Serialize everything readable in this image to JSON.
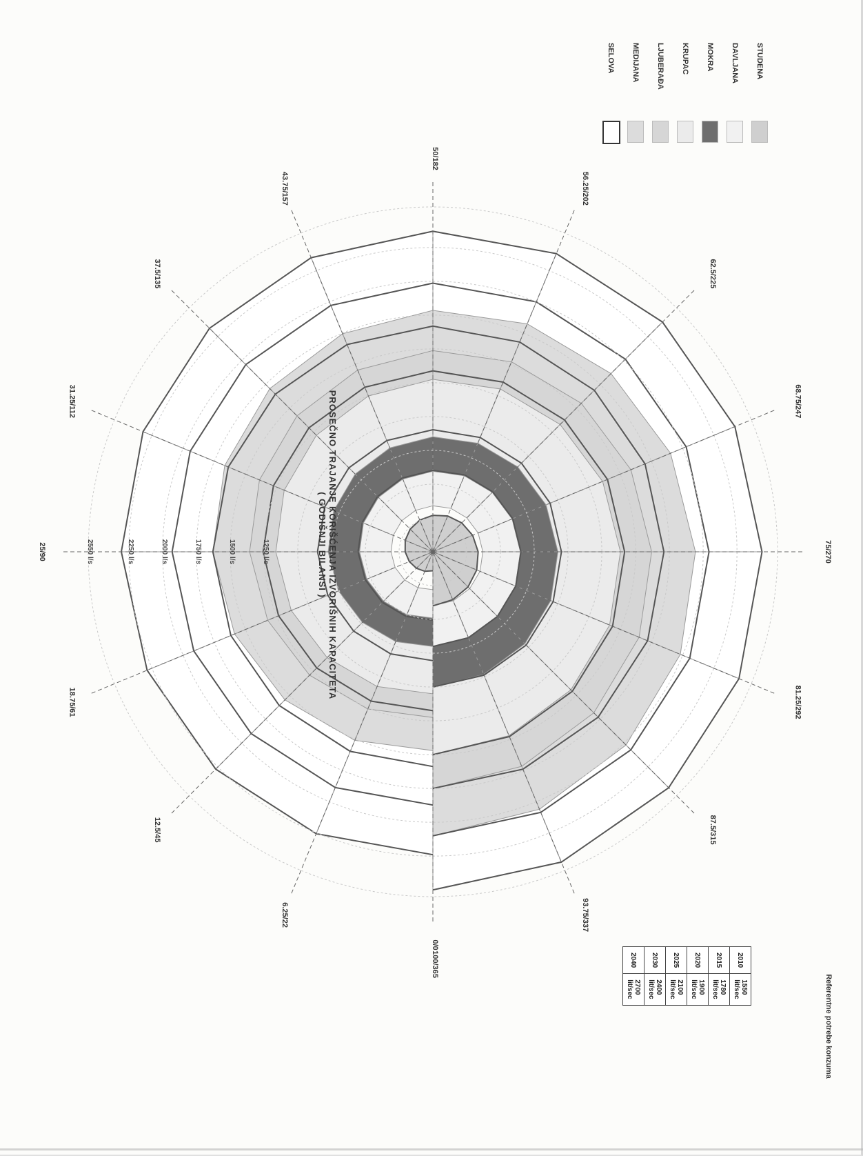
{
  "chart_data": {
    "type": "polar-spiral",
    "title_lines": [
      "PROSEČNO TRAJANJE KORIŠĆENJA IZVORIŠNIH KAPACITETA",
      "( GODIŠNJI BILANSI )"
    ],
    "angle_labels": [
      "0/0",
      "6.25/22",
      "12.5/45",
      "18.75/61",
      "25/90",
      "31.25/112",
      "37.5/135",
      "43.75/157",
      "50/182",
      "56.25/202",
      "62.5/225",
      "68.75/247",
      "75/270",
      "81.25/292",
      "87.5/315",
      "93.75/337",
      "100/365"
    ],
    "ring_labels": [
      "2550 l/s",
      "2250 l/s",
      "2000 l/s",
      "1750 l/s",
      "1500 l/s",
      "1250 l/s"
    ],
    "ring_max": 2550,
    "ring_values": [
      250,
      500,
      750,
      1000,
      1250,
      1500,
      1750,
      2000,
      2250,
      2550
    ],
    "series": [
      {
        "name": "STUDENA",
        "color": "#cfcfcf",
        "start": 0,
        "end": 400
      },
      {
        "name": "DAVLJANA",
        "color": "#f1f1f1",
        "start": 400,
        "end": 700
      },
      {
        "name": "MOKRA",
        "color": "#6e6e6e",
        "start": 700,
        "end": 1000
      },
      {
        "name": "KRUPAC",
        "color": "#ebebeb",
        "start": 1000,
        "end": 1500
      },
      {
        "name": "LJUBERAĐA",
        "color": "#d6d6d6",
        "start": 1500,
        "end": 1750
      },
      {
        "name": "MEDIJANA",
        "color": "#dcdcdc",
        "start": 1750,
        "end": 2100
      },
      {
        "name": "SELOVA",
        "color": "#ffffff",
        "start": 2100,
        "end": 2500
      }
    ],
    "reference_table": {
      "title": "Referentne potrebe konzuma",
      "rows": [
        [
          "2010",
          "1550 lit/sec"
        ],
        [
          "2015",
          "1780 lit/sec"
        ],
        [
          "2020",
          "1900 lit/sec"
        ],
        [
          "2025",
          "2100 lit/sec"
        ],
        [
          "2030",
          "2400 lit/sec"
        ],
        [
          "2040",
          "2700 lit/sec"
        ]
      ]
    }
  }
}
